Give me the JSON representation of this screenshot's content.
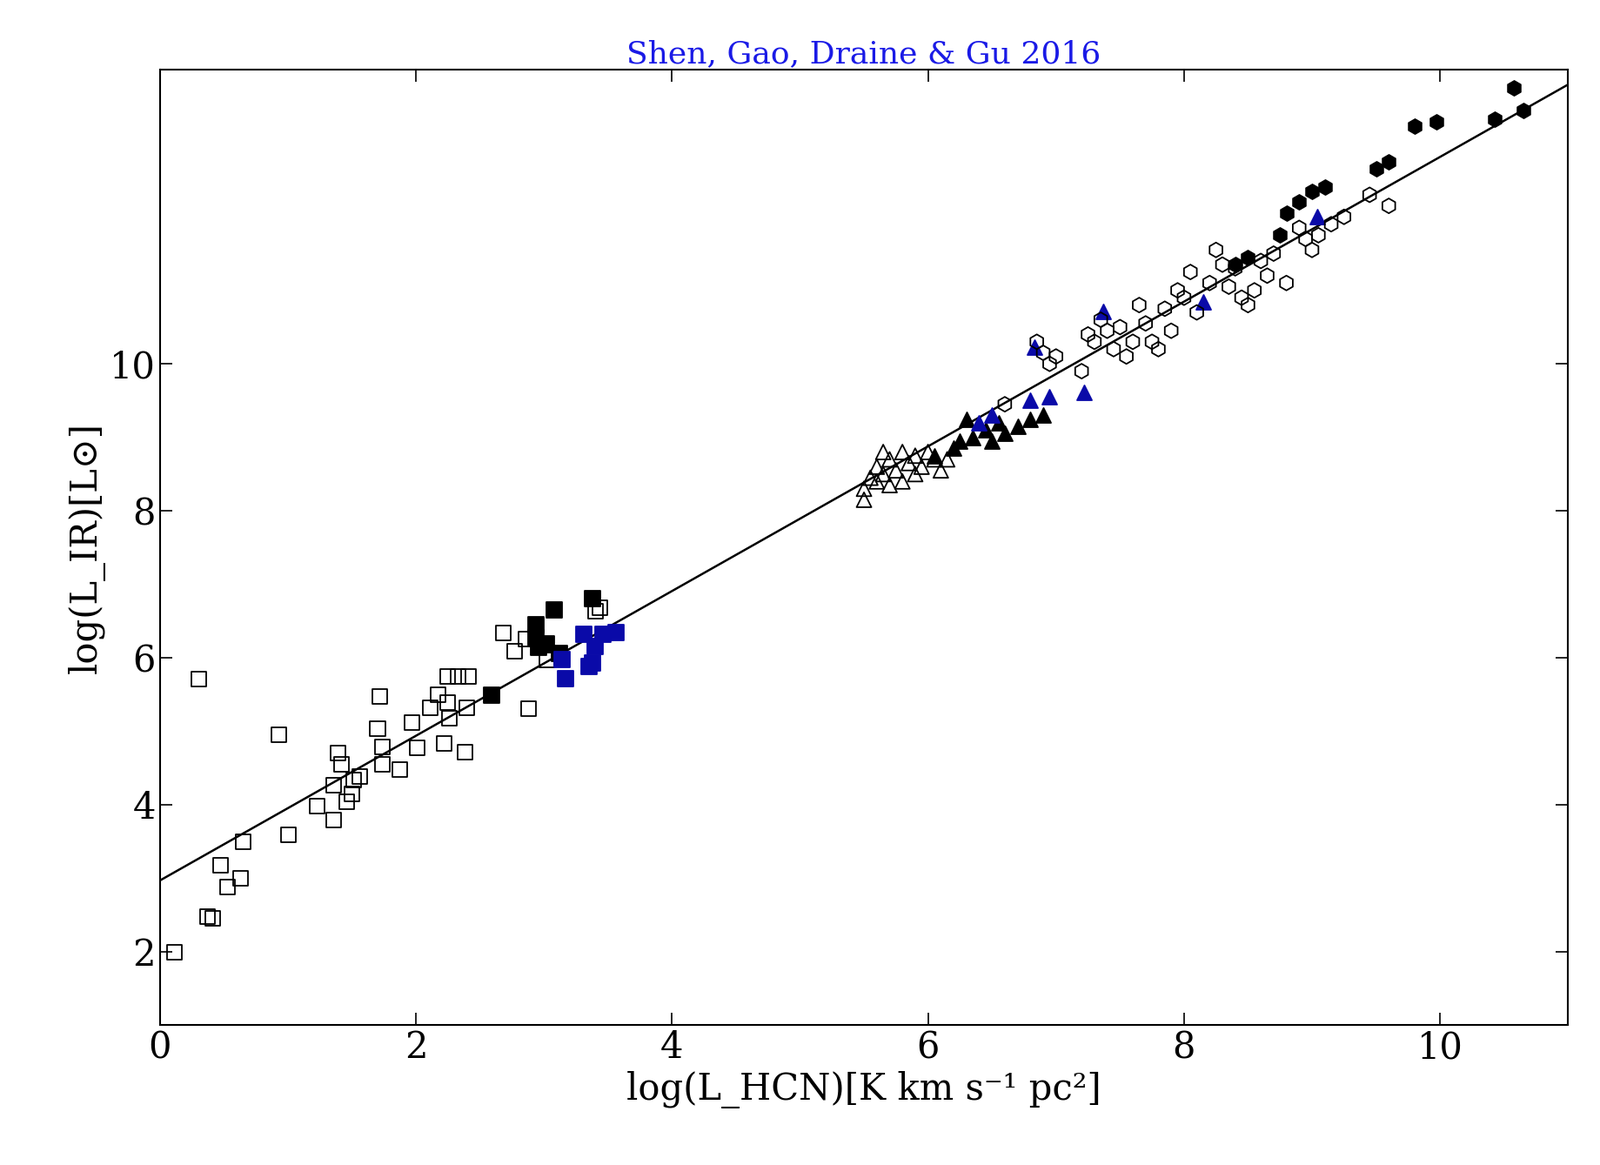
{
  "chart_data": {
    "type": "scatter",
    "title": "Shen, Gao, Draine & Gu 2016",
    "x_label": "log(L_HCN)[K km s⁻¹ pc²]",
    "y_label": "log(L_IR)[L⊙]",
    "xlim": [
      0,
      11
    ],
    "ylim": [
      1,
      14
    ],
    "xticks": [
      0,
      2,
      4,
      6,
      8,
      10
    ],
    "yticks": [
      2,
      4,
      6,
      8,
      10
    ],
    "grid": false,
    "series": [
      {
        "color": "#000000",
        "marker": "open_square",
        "x": [
          0.11,
          0.3,
          0.37,
          0.41,
          0.47,
          0.53,
          0.63,
          0.65,
          0.93,
          1.0,
          1.23,
          1.36,
          1.36,
          1.39,
          1.42,
          1.46,
          1.5,
          1.51,
          1.56,
          1.72,
          1.7,
          1.74,
          1.74,
          1.87,
          1.97,
          2.01,
          2.11,
          2.17,
          2.22,
          2.25,
          2.25,
          2.26,
          2.33,
          2.41,
          2.38,
          2.4,
          2.68,
          2.77,
          2.86,
          2.88,
          3.02,
          3.44,
          3.4
        ],
        "values": [
          1.99,
          5.71,
          2.48,
          2.45,
          3.18,
          2.88,
          3.0,
          3.5,
          4.95,
          3.59,
          3.98,
          3.79,
          4.26,
          4.7,
          4.55,
          4.04,
          4.15,
          4.34,
          4.38,
          5.47,
          5.04,
          4.79,
          4.55,
          4.48,
          5.12,
          4.77,
          5.32,
          5.5,
          4.83,
          5.39,
          5.74,
          5.18,
          5.75,
          5.74,
          4.72,
          5.32,
          6.34,
          6.09,
          6.25,
          5.31,
          5.97,
          6.68,
          6.63
        ]
      },
      {
        "color": "#000000",
        "marker": "filled_square",
        "x": [
          2.59,
          2.94,
          2.94,
          2.96,
          3.02,
          3.08,
          3.12,
          3.38
        ],
        "values": [
          5.49,
          6.45,
          6.27,
          6.14,
          6.19,
          6.65,
          6.06,
          6.8
        ]
      },
      {
        "color": "#0a0aa8",
        "marker": "filled_square",
        "x": [
          3.14,
          3.17,
          3.31,
          3.35,
          3.4,
          3.46,
          3.56,
          3.38
        ],
        "values": [
          5.98,
          5.72,
          6.32,
          5.88,
          6.16,
          6.32,
          6.34,
          5.93
        ]
      },
      {
        "color": "#000000",
        "marker": "open_triangle",
        "x": [
          5.5,
          5.55,
          5.6,
          5.65,
          5.7,
          5.75,
          5.8,
          5.85,
          5.9,
          5.95,
          6.0,
          6.05,
          6.1,
          5.7,
          5.65,
          5.8,
          6.15,
          5.5,
          5.6,
          5.9
        ],
        "values": [
          8.3,
          8.45,
          8.6,
          8.5,
          8.7,
          8.55,
          8.4,
          8.65,
          8.75,
          8.6,
          8.8,
          8.7,
          8.55,
          8.35,
          8.8,
          8.8,
          8.7,
          8.15,
          8.4,
          8.5
        ]
      },
      {
        "color": "#000000",
        "marker": "filled_triangle",
        "x": [
          6.05,
          6.25,
          6.3,
          6.35,
          6.45,
          6.5,
          6.6,
          6.7,
          6.8,
          6.9,
          6.2,
          6.55
        ],
        "values": [
          8.75,
          8.95,
          9.25,
          9.0,
          9.1,
          8.95,
          9.05,
          9.15,
          9.25,
          9.3,
          8.85,
          9.2
        ]
      },
      {
        "color": "#0a0aa8",
        "marker": "filled_triangle",
        "x": [
          6.4,
          6.5,
          6.83,
          6.8,
          6.95,
          7.22,
          7.37,
          8.15,
          9.04
        ],
        "values": [
          9.2,
          9.3,
          10.23,
          9.5,
          9.55,
          9.61,
          10.71,
          10.84,
          12.0
        ]
      },
      {
        "color": "#000000",
        "marker": "open_hexagon",
        "x": [
          6.6,
          6.85,
          6.9,
          6.95,
          7.0,
          7.2,
          7.3,
          7.35,
          7.4,
          7.45,
          7.5,
          7.55,
          7.6,
          7.65,
          7.7,
          7.75,
          7.8,
          7.85,
          7.9,
          8.0,
          8.1,
          8.05,
          8.2,
          8.3,
          8.35,
          8.4,
          8.45,
          8.5,
          8.55,
          8.6,
          8.65,
          8.8,
          8.9,
          8.95,
          9.0,
          9.05,
          9.15,
          9.25,
          9.6,
          9.45,
          8.25,
          7.95,
          7.25,
          8.7
        ],
        "values": [
          9.45,
          10.3,
          10.15,
          10.0,
          10.1,
          9.9,
          10.3,
          10.6,
          10.45,
          10.2,
          10.5,
          10.1,
          10.3,
          10.8,
          10.55,
          10.3,
          10.2,
          10.75,
          10.45,
          10.9,
          10.7,
          11.25,
          11.1,
          11.35,
          11.05,
          11.3,
          10.9,
          10.8,
          11.0,
          11.4,
          11.2,
          11.1,
          11.85,
          11.7,
          11.55,
          11.75,
          11.9,
          12.0,
          12.15,
          12.3,
          11.55,
          11.0,
          10.4,
          11.5
        ]
      },
      {
        "color": "#000000",
        "marker": "filled_hexagon",
        "x": [
          8.75,
          8.8,
          8.9,
          9.0,
          9.1,
          9.5,
          9.6,
          9.8,
          9.97,
          10.43,
          10.58,
          10.65,
          8.4,
          8.5
        ],
        "values": [
          11.75,
          12.05,
          12.2,
          12.35,
          12.4,
          12.65,
          12.75,
          13.23,
          13.29,
          13.33,
          13.75,
          13.45,
          11.35,
          11.45
        ]
      },
      {
        "type": "line",
        "color": "#000000",
        "line_style": "solid",
        "x": [
          0,
          11
        ],
        "values": [
          2.97,
          13.8
        ]
      }
    ]
  }
}
